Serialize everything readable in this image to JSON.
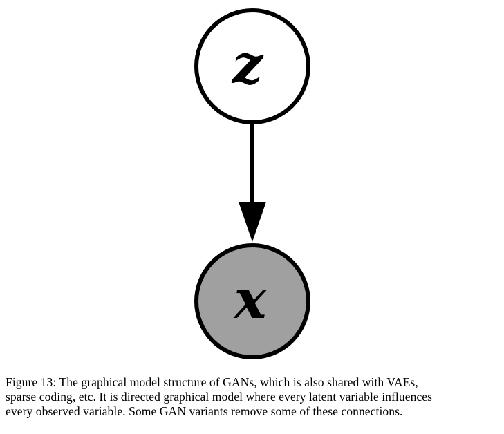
{
  "figure": {
    "nodes": [
      {
        "id": "latent",
        "label": "z",
        "fill": "#ffffff"
      },
      {
        "id": "observed",
        "label": "x",
        "fill": "#a0a0a0"
      }
    ],
    "edge": {
      "from": "z",
      "to": "x"
    },
    "caption_lines": [
      "Figure 13: The graphical model structure of GANs, which is also shared with VAEs,",
      "sparse coding, etc. It is directed graphical model where every latent variable influences",
      "every observed variable. Some GAN variants remove some of these connections."
    ]
  }
}
